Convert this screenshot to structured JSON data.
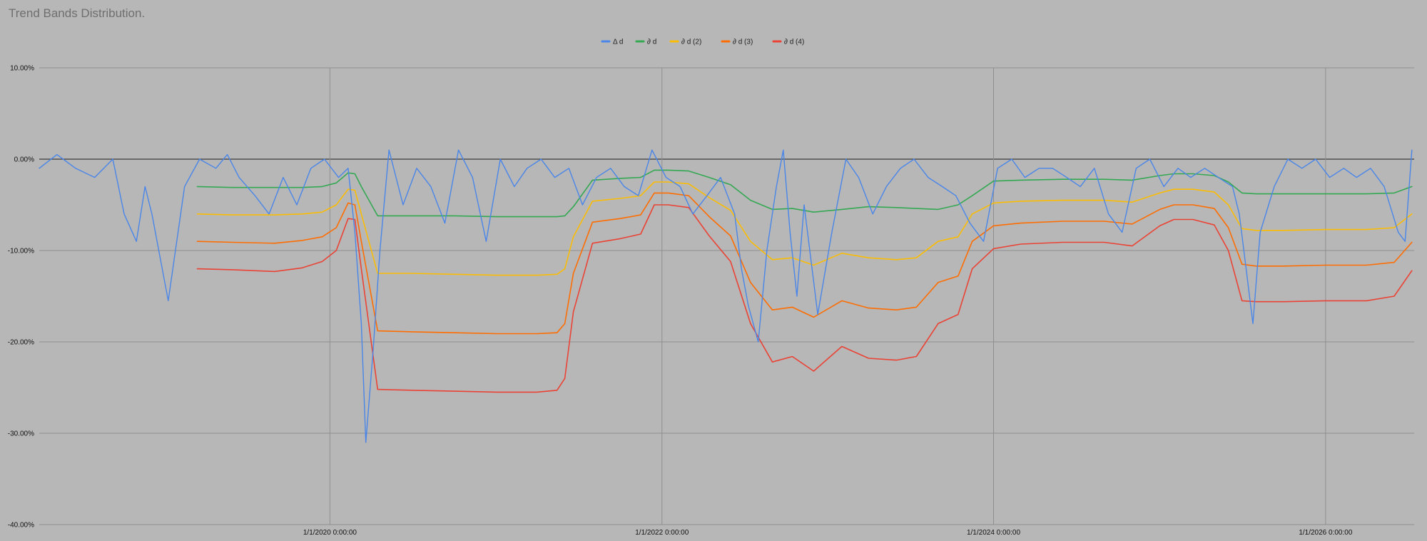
{
  "chart_data": {
    "type": "line",
    "title": "Trend Bands Distribution.",
    "ylim": [
      -0.4,
      0.1
    ],
    "y_ticks": [
      {
        "value": 0.1,
        "label": "10.00%"
      },
      {
        "value": 0.0,
        "label": "0.00%"
      },
      {
        "value": -0.1,
        "label": "-10.00%"
      },
      {
        "value": -0.2,
        "label": "-20.00%"
      },
      {
        "value": -0.3,
        "label": "-30.00%"
      },
      {
        "value": -0.4,
        "label": "-40.00%"
      }
    ],
    "xlim": [
      "2018-04-01",
      "2026-07-15"
    ],
    "x_ticks": [
      {
        "value": "2020-01-01",
        "label": "1/1/2020 0:00:00"
      },
      {
        "value": "2022-01-01",
        "label": "1/1/2022 0:00:00"
      },
      {
        "value": "2024-01-01",
        "label": "1/1/2024 0:00:00"
      },
      {
        "value": "2026-01-01",
        "label": "1/1/2026 0:00:00"
      }
    ],
    "grid": true,
    "legend_position": "top-center",
    "series": [
      {
        "name": "Δ d",
        "color": "#4a86e8",
        "x": [
          "2018-04-01",
          "2018-05-10",
          "2018-06-20",
          "2018-08-01",
          "2018-09-10",
          "2018-10-05",
          "2018-11-01",
          "2018-11-20",
          "2018-12-05",
          "2019-01-10",
          "2019-02-15",
          "2019-03-20",
          "2019-04-25",
          "2019-05-20",
          "2019-06-15",
          "2019-07-20",
          "2019-08-20",
          "2019-09-20",
          "2019-10-20",
          "2019-11-20",
          "2019-12-20",
          "2020-01-20",
          "2020-02-10",
          "2020-02-25",
          "2020-03-10",
          "2020-03-20",
          "2020-04-05",
          "2020-04-20",
          "2020-05-10",
          "2020-06-10",
          "2020-07-10",
          "2020-08-10",
          "2020-09-10",
          "2020-10-10",
          "2020-11-10",
          "2020-12-10",
          "2021-01-10",
          "2021-02-10",
          "2021-03-10",
          "2021-04-10",
          "2021-05-10",
          "2021-06-10",
          "2021-07-10",
          "2021-08-10",
          "2021-09-10",
          "2021-10-10",
          "2021-11-10",
          "2021-12-10",
          "2022-01-10",
          "2022-02-10",
          "2022-03-10",
          "2022-04-10",
          "2022-05-10",
          "2022-06-10",
          "2022-06-25",
          "2022-07-10",
          "2022-08-01",
          "2022-08-20",
          "2022-09-10",
          "2022-09-25",
          "2022-10-10",
          "2022-10-25",
          "2022-11-10",
          "2022-12-10",
          "2023-01-10",
          "2023-02-10",
          "2023-03-10",
          "2023-04-10",
          "2023-05-10",
          "2023-06-10",
          "2023-07-10",
          "2023-08-10",
          "2023-09-10",
          "2023-10-10",
          "2023-11-10",
          "2023-12-10",
          "2024-01-10",
          "2024-02-10",
          "2024-03-10",
          "2024-04-10",
          "2024-05-10",
          "2024-06-10",
          "2024-07-10",
          "2024-08-10",
          "2024-09-10",
          "2024-10-10",
          "2024-11-10",
          "2024-12-10",
          "2025-01-10",
          "2025-02-10",
          "2025-03-10",
          "2025-04-10",
          "2025-05-10",
          "2025-06-10",
          "2025-06-25",
          "2025-07-10",
          "2025-07-25",
          "2025-08-10",
          "2025-09-10",
          "2025-10-10",
          "2025-11-10",
          "2025-12-10",
          "2026-01-10",
          "2026-02-10",
          "2026-03-10",
          "2026-04-10",
          "2026-05-10",
          "2026-06-10",
          "2026-06-25",
          "2026-07-10"
        ],
        "y": [
          -0.01,
          0.005,
          -0.01,
          -0.02,
          0.0,
          -0.06,
          -0.09,
          -0.03,
          -0.06,
          -0.155,
          -0.03,
          0.0,
          -0.01,
          0.005,
          -0.02,
          -0.04,
          -0.06,
          -0.02,
          -0.05,
          -0.01,
          0.0,
          -0.02,
          -0.01,
          -0.08,
          -0.18,
          -0.31,
          -0.21,
          -0.1,
          0.01,
          -0.05,
          -0.01,
          -0.03,
          -0.07,
          0.01,
          -0.02,
          -0.09,
          0.0,
          -0.03,
          -0.01,
          0.0,
          -0.02,
          -0.01,
          -0.05,
          -0.02,
          -0.01,
          -0.03,
          -0.04,
          0.01,
          -0.02,
          -0.03,
          -0.06,
          -0.04,
          -0.02,
          -0.06,
          -0.12,
          -0.16,
          -0.2,
          -0.1,
          -0.03,
          0.01,
          -0.08,
          -0.15,
          -0.05,
          -0.17,
          -0.08,
          0.0,
          -0.02,
          -0.06,
          -0.03,
          -0.01,
          0.0,
          -0.02,
          -0.03,
          -0.04,
          -0.07,
          -0.09,
          -0.01,
          0.0,
          -0.02,
          -0.01,
          -0.01,
          -0.02,
          -0.03,
          -0.01,
          -0.06,
          -0.08,
          -0.01,
          0.0,
          -0.03,
          -0.01,
          -0.02,
          -0.01,
          -0.02,
          -0.03,
          -0.06,
          -0.12,
          -0.18,
          -0.08,
          -0.03,
          0.0,
          -0.01,
          0.0,
          -0.02,
          -0.01,
          -0.02,
          -0.01,
          -0.03,
          -0.08,
          -0.09,
          0.01
        ]
      },
      {
        "name": "∂ d",
        "color": "#34a853",
        "x": [
          "2019-03-15",
          "2019-06-01",
          "2019-09-01",
          "2019-11-01",
          "2019-12-15",
          "2020-01-15",
          "2020-02-10",
          "2020-02-25",
          "2020-03-10",
          "2020-04-15",
          "2020-07-01",
          "2020-10-01",
          "2021-01-01",
          "2021-04-01",
          "2021-05-15",
          "2021-06-01",
          "2021-06-20",
          "2021-08-01",
          "2021-10-01",
          "2021-11-15",
          "2021-12-15",
          "2022-01-15",
          "2022-03-01",
          "2022-04-15",
          "2022-06-01",
          "2022-07-15",
          "2022-09-01",
          "2022-10-15",
          "2022-12-01",
          "2023-02-01",
          "2023-04-01",
          "2023-06-01",
          "2023-07-15",
          "2023-09-01",
          "2023-10-15",
          "2023-11-15",
          "2024-01-01",
          "2024-03-01",
          "2024-06-01",
          "2024-09-01",
          "2024-11-01",
          "2025-01-01",
          "2025-02-01",
          "2025-03-15",
          "2025-05-01",
          "2025-06-01",
          "2025-07-01",
          "2025-08-01",
          "2025-10-01",
          "2026-01-01",
          "2026-04-01",
          "2026-06-01",
          "2026-07-10"
        ],
        "y": [
          -0.03,
          -0.031,
          -0.031,
          -0.031,
          -0.03,
          -0.026,
          -0.015,
          -0.016,
          -0.03,
          -0.062,
          -0.062,
          -0.062,
          -0.063,
          -0.063,
          -0.063,
          -0.062,
          -0.052,
          -0.023,
          -0.021,
          -0.02,
          -0.012,
          -0.012,
          -0.013,
          -0.02,
          -0.028,
          -0.045,
          -0.055,
          -0.054,
          -0.058,
          -0.055,
          -0.052,
          -0.053,
          -0.054,
          -0.055,
          -0.05,
          -0.04,
          -0.024,
          -0.023,
          -0.022,
          -0.022,
          -0.023,
          -0.018,
          -0.016,
          -0.016,
          -0.018,
          -0.025,
          -0.037,
          -0.038,
          -0.038,
          -0.038,
          -0.038,
          -0.037,
          -0.03
        ]
      },
      {
        "name": "∂ d (2)",
        "color": "#fbbc04",
        "x": [
          "2019-03-15",
          "2019-06-01",
          "2019-09-01",
          "2019-11-01",
          "2019-12-15",
          "2020-01-15",
          "2020-02-10",
          "2020-02-25",
          "2020-03-10",
          "2020-04-15",
          "2020-07-01",
          "2020-10-01",
          "2021-01-01",
          "2021-04-01",
          "2021-05-15",
          "2021-06-01",
          "2021-06-20",
          "2021-08-01",
          "2021-10-01",
          "2021-11-15",
          "2021-12-15",
          "2022-01-15",
          "2022-03-01",
          "2022-04-15",
          "2022-06-01",
          "2022-07-15",
          "2022-09-01",
          "2022-10-15",
          "2022-12-01",
          "2023-02-01",
          "2023-04-01",
          "2023-06-01",
          "2023-07-15",
          "2023-09-01",
          "2023-10-15",
          "2023-11-15",
          "2024-01-01",
          "2024-03-01",
          "2024-06-01",
          "2024-09-01",
          "2024-11-01",
          "2025-01-01",
          "2025-02-01",
          "2025-03-15",
          "2025-05-01",
          "2025-06-01",
          "2025-07-01",
          "2025-08-01",
          "2025-10-01",
          "2026-01-01",
          "2026-04-01",
          "2026-06-01",
          "2026-07-10"
        ],
        "y": [
          -0.06,
          -0.061,
          -0.061,
          -0.06,
          -0.058,
          -0.05,
          -0.033,
          -0.034,
          -0.06,
          -0.125,
          -0.125,
          -0.126,
          -0.127,
          -0.127,
          -0.126,
          -0.12,
          -0.085,
          -0.046,
          -0.043,
          -0.04,
          -0.025,
          -0.025,
          -0.027,
          -0.042,
          -0.056,
          -0.09,
          -0.11,
          -0.108,
          -0.116,
          -0.103,
          -0.108,
          -0.11,
          -0.108,
          -0.09,
          -0.085,
          -0.06,
          -0.048,
          -0.046,
          -0.045,
          -0.045,
          -0.047,
          -0.037,
          -0.033,
          -0.033,
          -0.036,
          -0.05,
          -0.076,
          -0.078,
          -0.078,
          -0.077,
          -0.077,
          -0.075,
          -0.06
        ]
      },
      {
        "name": "∂ d (3)",
        "color": "#ff6d01",
        "x": [
          "2019-03-15",
          "2019-06-01",
          "2019-09-01",
          "2019-11-01",
          "2019-12-15",
          "2020-01-15",
          "2020-02-10",
          "2020-02-25",
          "2020-03-10",
          "2020-04-15",
          "2020-07-01",
          "2020-10-01",
          "2021-01-01",
          "2021-04-01",
          "2021-05-15",
          "2021-06-01",
          "2021-06-20",
          "2021-08-01",
          "2021-10-01",
          "2021-11-15",
          "2021-12-15",
          "2022-01-15",
          "2022-03-01",
          "2022-04-15",
          "2022-06-01",
          "2022-07-15",
          "2022-09-01",
          "2022-10-15",
          "2022-12-01",
          "2023-02-01",
          "2023-04-01",
          "2023-06-01",
          "2023-07-15",
          "2023-09-01",
          "2023-10-15",
          "2023-11-15",
          "2024-01-01",
          "2024-03-01",
          "2024-06-01",
          "2024-09-01",
          "2024-11-01",
          "2025-01-01",
          "2025-02-01",
          "2025-03-15",
          "2025-05-01",
          "2025-06-01",
          "2025-07-01",
          "2025-08-01",
          "2025-10-01",
          "2026-01-01",
          "2026-04-01",
          "2026-06-01",
          "2026-07-10"
        ],
        "y": [
          -0.09,
          -0.091,
          -0.092,
          -0.089,
          -0.085,
          -0.075,
          -0.048,
          -0.05,
          -0.09,
          -0.188,
          -0.189,
          -0.19,
          -0.191,
          -0.191,
          -0.19,
          -0.18,
          -0.125,
          -0.069,
          -0.065,
          -0.061,
          -0.037,
          -0.037,
          -0.04,
          -0.063,
          -0.084,
          -0.135,
          -0.165,
          -0.162,
          -0.173,
          -0.155,
          -0.163,
          -0.165,
          -0.162,
          -0.135,
          -0.128,
          -0.09,
          -0.073,
          -0.07,
          -0.068,
          -0.068,
          -0.071,
          -0.055,
          -0.05,
          -0.05,
          -0.054,
          -0.075,
          -0.115,
          -0.117,
          -0.117,
          -0.116,
          -0.116,
          -0.113,
          -0.091
        ]
      },
      {
        "name": "∂ d (4)",
        "color": "#ea4335",
        "x": [
          "2019-03-15",
          "2019-06-01",
          "2019-09-01",
          "2019-11-01",
          "2019-12-15",
          "2020-01-15",
          "2020-02-10",
          "2020-02-25",
          "2020-03-10",
          "2020-04-15",
          "2020-07-01",
          "2020-10-01",
          "2021-01-01",
          "2021-04-01",
          "2021-05-15",
          "2021-06-01",
          "2021-06-20",
          "2021-08-01",
          "2021-10-01",
          "2021-11-15",
          "2021-12-15",
          "2022-01-15",
          "2022-03-01",
          "2022-04-15",
          "2022-06-01",
          "2022-07-15",
          "2022-09-01",
          "2022-10-15",
          "2022-12-01",
          "2023-02-01",
          "2023-04-01",
          "2023-06-01",
          "2023-07-15",
          "2023-09-01",
          "2023-10-15",
          "2023-11-15",
          "2024-01-01",
          "2024-03-01",
          "2024-06-01",
          "2024-09-01",
          "2024-11-01",
          "2025-01-01",
          "2025-02-01",
          "2025-03-15",
          "2025-05-01",
          "2025-06-01",
          "2025-07-01",
          "2025-08-01",
          "2025-10-01",
          "2026-01-01",
          "2026-04-01",
          "2026-06-01",
          "2026-07-10"
        ],
        "y": [
          -0.12,
          -0.121,
          -0.123,
          -0.119,
          -0.112,
          -0.1,
          -0.065,
          -0.066,
          -0.12,
          -0.252,
          -0.253,
          -0.254,
          -0.255,
          -0.255,
          -0.253,
          -0.24,
          -0.167,
          -0.092,
          -0.087,
          -0.082,
          -0.05,
          -0.05,
          -0.053,
          -0.084,
          -0.112,
          -0.18,
          -0.222,
          -0.216,
          -0.232,
          -0.205,
          -0.218,
          -0.22,
          -0.216,
          -0.18,
          -0.17,
          -0.12,
          -0.098,
          -0.093,
          -0.091,
          -0.091,
          -0.095,
          -0.073,
          -0.066,
          -0.066,
          -0.072,
          -0.1,
          -0.155,
          -0.156,
          -0.156,
          -0.155,
          -0.155,
          -0.15,
          -0.122
        ]
      }
    ]
  }
}
